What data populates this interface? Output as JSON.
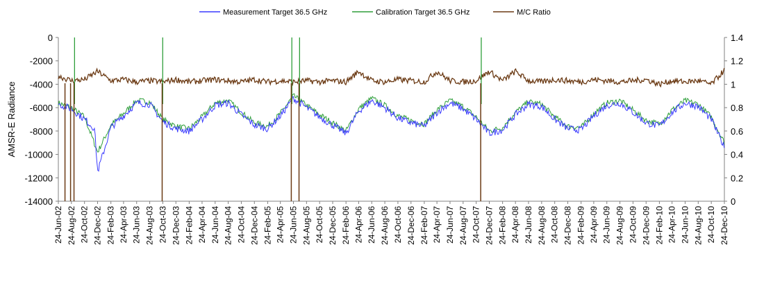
{
  "chart_data": {
    "type": "line",
    "ylabel": "AMSR-E Radiance",
    "y_left_lim": [
      -14000,
      0
    ],
    "y_left_ticks": [
      "0",
      "-2000",
      "-4000",
      "-6000",
      "-8000",
      "-10000",
      "-12000",
      "-14000"
    ],
    "y_right_lim": [
      0,
      1.4
    ],
    "y_right_ticks": [
      "1.4",
      "1.2",
      "1",
      "0.8",
      "0.6",
      "0.4",
      "0.2",
      "0"
    ],
    "x_range": [
      "2002-06-24",
      "2010-12-24"
    ],
    "x_tick_labels": [
      "24-Jun-02",
      "24-Aug-02",
      "24-Oct-02",
      "24-Dec-02",
      "24-Feb-03",
      "24-Apr-03",
      "24-Jun-03",
      "24-Aug-03",
      "24-Oct-03",
      "24-Dec-03",
      "24-Feb-04",
      "24-Apr-04",
      "24-Jun-04",
      "24-Aug-04",
      "24-Oct-04",
      "24-Dec-04",
      "24-Feb-05",
      "24-Apr-05",
      "24-Jun-05",
      "24-Aug-05",
      "24-Oct-05",
      "24-Dec-05",
      "24-Feb-06",
      "24-Apr-06",
      "24-Jun-06",
      "24-Aug-06",
      "24-Oct-06",
      "24-Dec-06",
      "24-Feb-07",
      "24-Apr-07",
      "24-Jun-07",
      "24-Aug-07",
      "24-Oct-07",
      "24-Dec-07",
      "24-Feb-08",
      "24-Apr-08",
      "24-Jun-08",
      "24-Aug-08",
      "24-Oct-08",
      "24-Dec-08",
      "24-Feb-09",
      "24-Apr-09",
      "24-Jun-09",
      "24-Aug-09",
      "24-Oct-09",
      "24-Dec-09",
      "24-Feb-10",
      "24-Apr-10",
      "24-Jun-10",
      "24-Aug-10",
      "24-Oct-10",
      "24-Dec-10"
    ],
    "grid": false,
    "legend_position": "top",
    "series": [
      {
        "name": "Measurement Target 36.5 GHz",
        "axis": "left",
        "color": "#3a3aff",
        "x": [
          "2002-06-24",
          "2002-08-24",
          "2002-10-24",
          "2002-12-10",
          "2002-12-24",
          "2003-02-24",
          "2003-04-24",
          "2003-06-24",
          "2003-08-24",
          "2003-10-24",
          "2003-12-24",
          "2004-02-24",
          "2004-04-24",
          "2004-06-24",
          "2004-08-24",
          "2004-10-24",
          "2004-12-24",
          "2005-02-24",
          "2005-04-24",
          "2005-06-24",
          "2005-08-24",
          "2005-10-24",
          "2005-12-24",
          "2006-02-24",
          "2006-04-24",
          "2006-06-24",
          "2006-08-24",
          "2006-10-24",
          "2006-12-24",
          "2007-02-24",
          "2007-04-24",
          "2007-06-24",
          "2007-08-24",
          "2007-10-24",
          "2007-12-24",
          "2008-02-24",
          "2008-04-24",
          "2008-06-24",
          "2008-08-24",
          "2008-10-24",
          "2008-12-24",
          "2009-02-24",
          "2009-04-24",
          "2009-06-24",
          "2009-08-24",
          "2009-10-24",
          "2009-12-24",
          "2010-02-24",
          "2010-04-24",
          "2010-06-24",
          "2010-08-24",
          "2010-10-24",
          "2010-12-24"
        ],
        "y": [
          -5700,
          -6100,
          -7000,
          -7800,
          -11500,
          -7700,
          -6700,
          -5600,
          -5700,
          -7200,
          -7800,
          -8000,
          -7000,
          -5800,
          -5600,
          -6600,
          -7500,
          -7800,
          -6700,
          -5200,
          -6000,
          -6800,
          -7500,
          -8200,
          -6300,
          -5400,
          -6000,
          -6900,
          -7300,
          -7600,
          -6400,
          -5600,
          -6100,
          -7000,
          -8200,
          -7900,
          -6600,
          -5700,
          -5900,
          -7000,
          -7800,
          -7900,
          -6700,
          -5800,
          -5600,
          -6400,
          -7300,
          -7600,
          -6400,
          -5600,
          -5900,
          -7000,
          -9400
        ]
      },
      {
        "name": "Calibration Target 36.5 GHz",
        "axis": "left",
        "color": "#2e9e3a",
        "x": [
          "2002-06-24",
          "2002-08-24",
          "2002-10-24",
          "2002-12-24",
          "2003-02-24",
          "2003-04-24",
          "2003-06-24",
          "2003-08-24",
          "2003-10-24",
          "2003-12-24",
          "2004-02-24",
          "2004-04-24",
          "2004-06-24",
          "2004-08-24",
          "2004-10-24",
          "2004-12-24",
          "2005-02-24",
          "2005-04-24",
          "2005-06-24",
          "2005-08-24",
          "2005-10-24",
          "2005-12-24",
          "2006-02-24",
          "2006-04-24",
          "2006-06-24",
          "2006-08-24",
          "2006-10-24",
          "2006-12-24",
          "2007-02-24",
          "2007-04-24",
          "2007-06-24",
          "2007-08-24",
          "2007-10-24",
          "2007-12-24",
          "2008-02-24",
          "2008-04-24",
          "2008-06-24",
          "2008-08-24",
          "2008-10-24",
          "2008-12-24",
          "2009-02-24",
          "2009-04-24",
          "2009-06-24",
          "2009-08-24",
          "2009-10-24",
          "2009-12-24",
          "2010-02-24",
          "2010-04-24",
          "2010-06-24",
          "2010-08-24",
          "2010-10-24",
          "2010-12-24"
        ],
        "y": [
          -5600,
          -6000,
          -6800,
          -9800,
          -7500,
          -6500,
          -5400,
          -5500,
          -7000,
          -7600,
          -7800,
          -6800,
          -5600,
          -5400,
          -6400,
          -7300,
          -7600,
          -6500,
          -5000,
          -5800,
          -6600,
          -7300,
          -8000,
          -6100,
          -5200,
          -5800,
          -6700,
          -7100,
          -7400,
          -6200,
          -5400,
          -5900,
          -6800,
          -8000,
          -7700,
          -6400,
          -5500,
          -5700,
          -6800,
          -7600,
          -7700,
          -6500,
          -5600,
          -5400,
          -6200,
          -7100,
          -7400,
          -6200,
          -5400,
          -5700,
          -6800,
          -9000
        ]
      },
      {
        "name": "M/C Ratio",
        "axis": "right",
        "color": "#6b3a14",
        "x": [
          "2002-06-24",
          "2002-08-24",
          "2002-10-24",
          "2002-12-24",
          "2003-02-24",
          "2003-04-24",
          "2003-06-24",
          "2003-08-24",
          "2003-10-24",
          "2003-12-24",
          "2004-02-24",
          "2004-04-24",
          "2004-06-24",
          "2004-08-24",
          "2004-10-24",
          "2004-12-24",
          "2005-02-24",
          "2005-04-24",
          "2005-06-24",
          "2005-08-24",
          "2005-10-24",
          "2005-12-24",
          "2006-02-24",
          "2006-04-24",
          "2006-06-24",
          "2006-08-24",
          "2006-10-24",
          "2006-12-24",
          "2007-02-24",
          "2007-04-24",
          "2007-06-24",
          "2007-08-24",
          "2007-10-24",
          "2007-12-24",
          "2008-02-24",
          "2008-04-24",
          "2008-06-24",
          "2008-08-24",
          "2008-10-24",
          "2008-12-24",
          "2009-02-24",
          "2009-04-24",
          "2009-06-24",
          "2009-08-24",
          "2009-10-24",
          "2009-12-24",
          "2010-02-24",
          "2010-04-24",
          "2010-06-24",
          "2010-08-24",
          "2010-10-24",
          "2010-12-24"
        ],
        "y": [
          1.07,
          1.03,
          1.04,
          1.11,
          1.03,
          1.04,
          1.02,
          1.03,
          1.02,
          1.04,
          1.02,
          1.03,
          1.04,
          1.03,
          1.02,
          1.04,
          1.02,
          1.03,
          1.02,
          1.03,
          1.02,
          1.03,
          1.02,
          1.11,
          1.03,
          1.02,
          1.04,
          1.03,
          1.02,
          1.11,
          1.03,
          1.02,
          1.03,
          1.11,
          1.03,
          1.11,
          1.03,
          1.02,
          1.04,
          1.03,
          1.02,
          1.04,
          1.03,
          1.02,
          1.03,
          1.04,
          1.0,
          1.03,
          1.02,
          1.03,
          1.0,
          1.12
        ]
      }
    ],
    "dropouts": [
      {
        "date": "2002-07-25",
        "series": [
          "M/C Ratio"
        ]
      },
      {
        "date": "2002-08-20",
        "series": [
          "M/C Ratio"
        ]
      },
      {
        "date": "2002-09-05",
        "series": [
          "Calibration Target 36.5 GHz",
          "M/C Ratio"
        ]
      },
      {
        "date": "2003-10-21",
        "series": [
          "Calibration Target 36.5 GHz",
          "M/C Ratio"
        ]
      },
      {
        "date": "2005-06-14",
        "series": [
          "Calibration Target 36.5 GHz",
          "M/C Ratio"
        ]
      },
      {
        "date": "2005-07-20",
        "series": [
          "Calibration Target 36.5 GHz",
          "M/C Ratio"
        ]
      },
      {
        "date": "2007-11-14",
        "series": [
          "Calibration Target 36.5 GHz",
          "M/C Ratio"
        ]
      }
    ]
  }
}
